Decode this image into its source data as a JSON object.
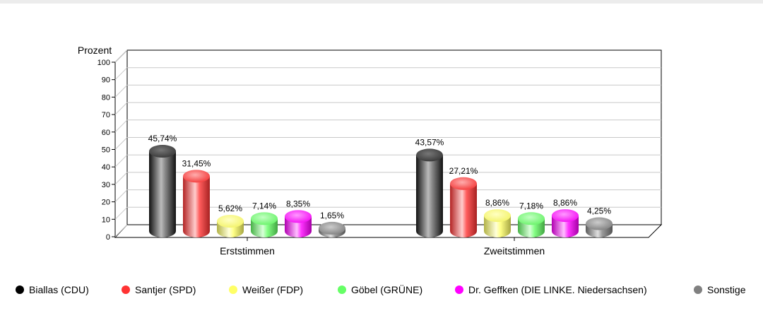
{
  "chart_data": {
    "type": "bar",
    "ylabel": "Prozent",
    "ylim": [
      0,
      100
    ],
    "yticks": [
      0,
      10,
      20,
      30,
      40,
      50,
      60,
      70,
      80,
      90,
      100
    ],
    "grid": true,
    "legend_position": "bottom",
    "categories": [
      "Erststimmen",
      "Zweitstimmen"
    ],
    "series": [
      {
        "name": "Biallas (CDU)",
        "color": "#000000",
        "values": [
          45.74,
          43.57
        ],
        "labels": [
          "45,74%",
          "43,57%"
        ]
      },
      {
        "name": "Santjer (SPD)",
        "color": "#ff3333",
        "values": [
          31.45,
          27.21
        ],
        "labels": [
          "31,45%",
          "27,21%"
        ]
      },
      {
        "name": "Weißer (FDP)",
        "color": "#ffff66",
        "values": [
          5.62,
          8.86
        ],
        "labels": [
          "5,62%",
          "8,86%"
        ]
      },
      {
        "name": "Göbel (GRÜNE)",
        "color": "#66ff66",
        "values": [
          7.14,
          7.18
        ],
        "labels": [
          "7,14%",
          "7,18%"
        ]
      },
      {
        "name": "Dr. Geffken (DIE LINKE. Niedersachsen)",
        "color": "#ff00ff",
        "values": [
          8.35,
          8.86
        ],
        "labels": [
          "8,35%",
          "8,86%"
        ]
      },
      {
        "name": "Sonstige",
        "color": "#808080",
        "values": [
          1.65,
          4.25
        ],
        "labels": [
          "1,65%",
          "4,25%"
        ]
      }
    ]
  }
}
